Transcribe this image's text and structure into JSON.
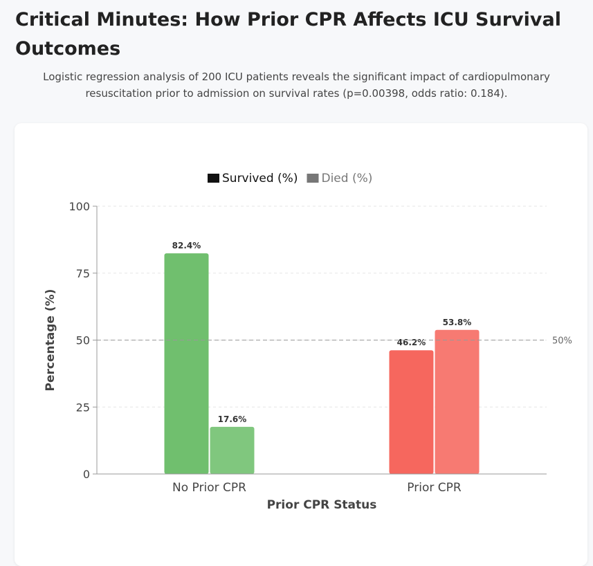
{
  "header": {
    "title": "Critical Minutes: How Prior CPR Affects ICU Survival Outcomes",
    "subtitle": "Logistic regression analysis of 200 ICU patients reveals the significant impact of cardiopulmonary resuscitation prior to admission on survival rates (p=0.00398, odds ratio: 0.184)."
  },
  "chart_data": {
    "type": "bar",
    "categories": [
      "No Prior CPR",
      "Prior CPR"
    ],
    "series": [
      {
        "name": "Survived (%)",
        "values": [
          82.4,
          46.2
        ],
        "colors": [
          "#70bf6e",
          "#f6675e"
        ]
      },
      {
        "name": "Died (%)",
        "values": [
          17.6,
          53.8
        ],
        "colors": [
          "#80c77e",
          "#f77a72"
        ]
      }
    ],
    "legend_colors": [
      "#111111",
      "#777777"
    ],
    "data_labels": [
      [
        "82.4%",
        "46.2%"
      ],
      [
        "17.6%",
        "53.8%"
      ]
    ],
    "xlabel": "Prior CPR Status",
    "ylabel": "Percentage (%)",
    "ylim": [
      0,
      100
    ],
    "yticks": [
      0,
      25,
      50,
      75,
      100
    ],
    "reference_line": {
      "value": 50,
      "label": "50%"
    },
    "grid": true,
    "legend_position": "top-center"
  }
}
